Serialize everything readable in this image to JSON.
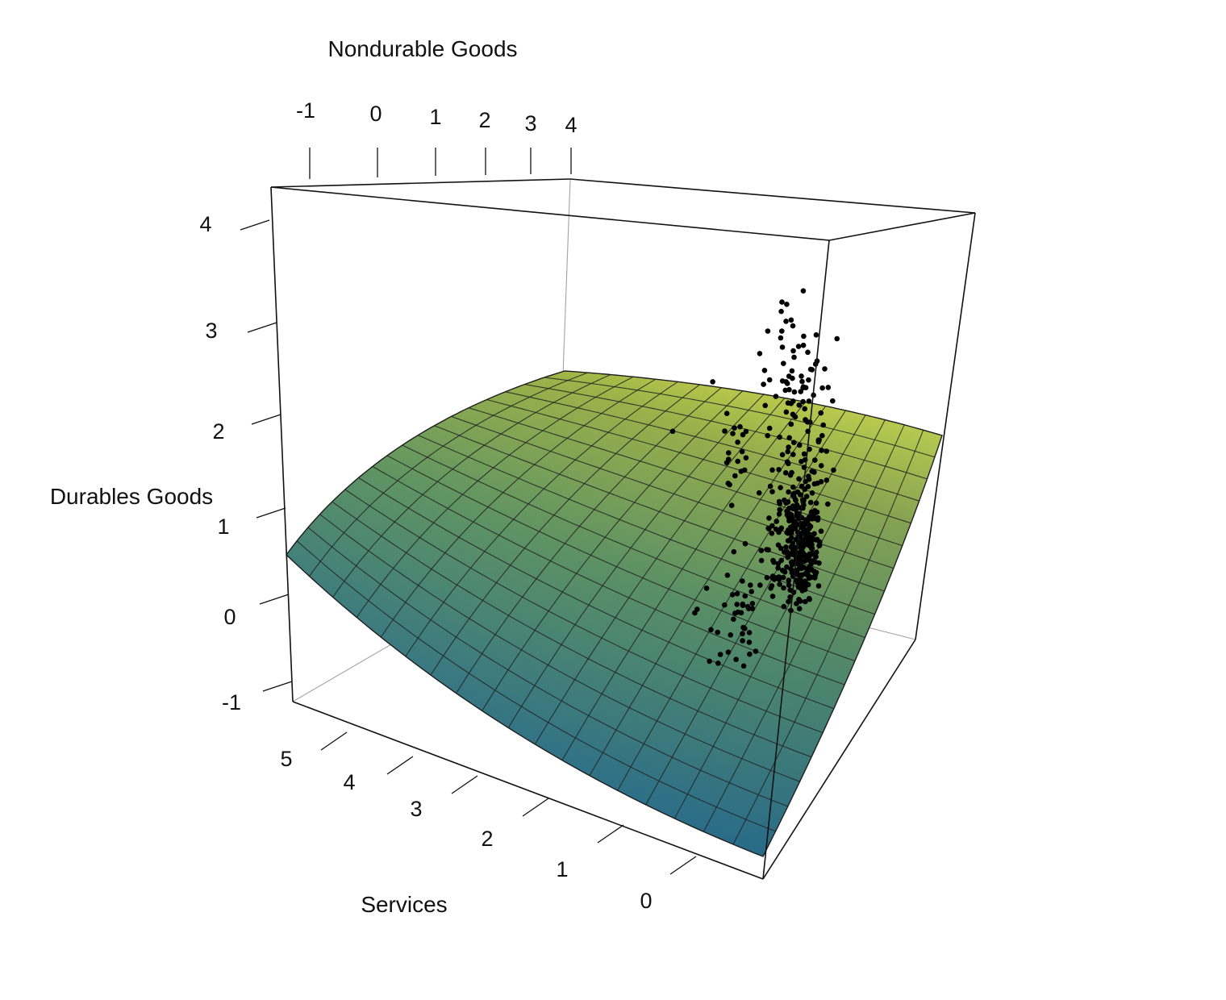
{
  "chart_data": {
    "type": "scatter3d_surface",
    "title": "",
    "axes": {
      "x": {
        "label": "Nondurable Goods",
        "ticks": [
          "-1",
          "0",
          "1",
          "2",
          "3",
          "4"
        ],
        "range": [
          -1,
          4
        ]
      },
      "y": {
        "label": "Services",
        "ticks": [
          "0",
          "1",
          "2",
          "3",
          "4",
          "5"
        ],
        "range": [
          0,
          5
        ]
      },
      "z": {
        "label": "Durables Goods",
        "ticks": [
          "-1",
          "0",
          "1",
          "2",
          "3",
          "4"
        ],
        "range": [
          -1,
          4
        ]
      }
    },
    "surface": {
      "description_of_fit": "smooth fitted regression surface",
      "grid_size": 18,
      "colors": {
        "low": "#2a6e8c",
        "mid": "#5e9560",
        "high": "#e4ea45"
      }
    },
    "points_clusters": [
      {
        "x": -1.0,
        "y": 0.2,
        "z": 3.1,
        "n": 8,
        "spread": [
          0.3,
          0.3,
          0.3
        ]
      },
      {
        "x": -0.2,
        "y": 0.5,
        "z": 2.6,
        "n": 14,
        "spread": [
          0.4,
          0.5,
          0.5
        ]
      },
      {
        "x": 0.8,
        "y": 0.2,
        "z": 3.2,
        "n": 26,
        "spread": [
          0.5,
          0.4,
          0.4
        ]
      },
      {
        "x": 1.8,
        "y": 0.3,
        "z": 2.4,
        "n": 40,
        "spread": [
          0.5,
          0.6,
          0.8
        ]
      },
      {
        "x": 2.4,
        "y": 0.6,
        "z": 1.2,
        "n": 90,
        "spread": [
          0.4,
          0.6,
          0.7
        ]
      },
      {
        "x": 2.9,
        "y": 0.9,
        "z": 0.2,
        "n": 260,
        "spread": [
          0.35,
          0.5,
          0.45
        ]
      },
      {
        "x": 2.7,
        "y": 1.6,
        "z": -0.5,
        "n": 40,
        "spread": [
          0.5,
          0.5,
          0.4
        ]
      }
    ],
    "grid": false,
    "legend": "none"
  }
}
